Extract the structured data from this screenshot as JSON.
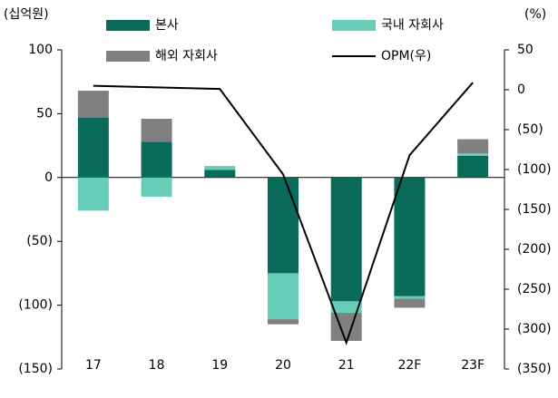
{
  "chart_data": {
    "type": "bar",
    "y_unit": "(십억원)",
    "y2_unit": "(%)",
    "categories": [
      "17",
      "18",
      "19",
      "20",
      "21",
      "22F",
      "23F"
    ],
    "series": [
      {
        "name": "본사",
        "color": "#0a6b5a",
        "values": [
          47,
          28,
          6,
          -75,
          -97,
          -93,
          17
        ]
      },
      {
        "name": "국내 자회사",
        "color": "#66cdb9",
        "values": [
          -26,
          -15,
          3,
          -36,
          -9,
          -2,
          2
        ]
      },
      {
        "name": "해외 자회사",
        "color": "#808080",
        "values": [
          21,
          18,
          0,
          -4,
          -22,
          -7,
          11
        ]
      },
      {
        "name": "OPM(우)",
        "color": "#000000",
        "type": "line",
        "axis": "y2",
        "values": [
          5,
          3,
          1,
          -106,
          -317,
          -82,
          9
        ]
      }
    ],
    "ylim": [
      -150,
      100
    ],
    "yticks": [
      {
        "value": -150,
        "label": "(150)"
      },
      {
        "value": -100,
        "label": "(100)"
      },
      {
        "value": -50,
        "label": "(50)"
      },
      0,
      50,
      100
    ],
    "y2lim": [
      -350,
      50
    ],
    "y2ticks": [
      {
        "value": -350,
        "label": "(350)"
      },
      {
        "value": -300,
        "label": "(300)"
      },
      {
        "value": -250,
        "label": "(250)"
      },
      {
        "value": -200,
        "label": "(200)"
      },
      {
        "value": -150,
        "label": "(150)"
      },
      {
        "value": -100,
        "label": "(100)"
      },
      {
        "value": -50,
        "label": "(50)"
      },
      0,
      50
    ]
  }
}
